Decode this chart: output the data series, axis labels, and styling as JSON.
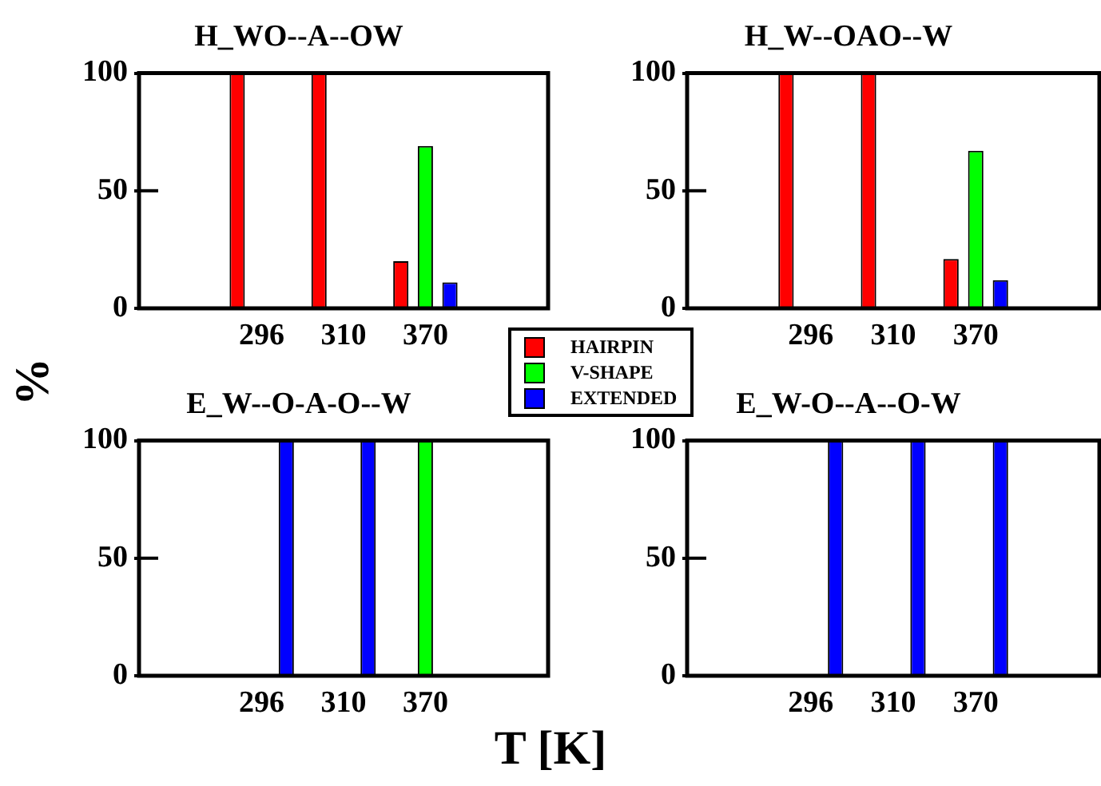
{
  "chart_data": [
    {
      "type": "bar",
      "title": "H_WO--A--OW",
      "ylabel": "%",
      "categories": [
        "296",
        "310",
        "370"
      ],
      "ylim": [
        0,
        100
      ],
      "yticks": [
        0,
        50,
        100
      ],
      "legend": "bottom right",
      "series": [
        {
          "name": "HAIRPIN",
          "color": "#ff0000",
          "values": [
            100,
            100,
            20
          ]
        },
        {
          "name": "V-SHAPE",
          "color": "#00ff00",
          "values": [
            0,
            0,
            69
          ]
        },
        {
          "name": "EXTENDED",
          "color": "#0000ff",
          "values": [
            0,
            0,
            11
          ]
        }
      ]
    },
    {
      "type": "bar",
      "title": "H_W--OAO--W",
      "categories": [
        "296",
        "310",
        "370"
      ],
      "ylim": [
        0,
        100
      ],
      "yticks": [
        0,
        50,
        100
      ],
      "series": [
        {
          "color": "#ff0000",
          "values": [
            100,
            100,
            21
          ]
        },
        {
          "color": "#00ff00",
          "values": [
            0,
            0,
            67
          ]
        },
        {
          "color": "#0000ff",
          "values": [
            0,
            0,
            12
          ]
        }
      ]
    },
    {
      "type": "bar",
      "title": "E_W--O-A-O--W",
      "xlabel": "T [K]",
      "categories": [
        "296",
        "310",
        "370"
      ],
      "ylim": [
        0,
        100
      ],
      "yticks": [
        0,
        50,
        100
      ],
      "series": [
        {
          "color": "#ff0000",
          "values": [
            0,
            0,
            0
          ]
        },
        {
          "color": "#00ff00",
          "values": [
            0,
            0,
            100
          ]
        },
        {
          "color": "#0000ff",
          "values": [
            100,
            100,
            0
          ]
        }
      ]
    },
    {
      "type": "bar",
      "title": "E_W-O--A--O-W",
      "categories": [
        "296",
        "310",
        "370"
      ],
      "ylim": [
        0,
        100
      ],
      "yticks": [
        0,
        50,
        100
      ],
      "series": [
        {
          "color": "#ff0000",
          "values": [
            0,
            0,
            0
          ]
        },
        {
          "color": "#00ff00",
          "values": [
            0,
            0,
            0
          ]
        },
        {
          "color": "#0000ff",
          "values": [
            100,
            100,
            100
          ]
        }
      ]
    }
  ]
}
